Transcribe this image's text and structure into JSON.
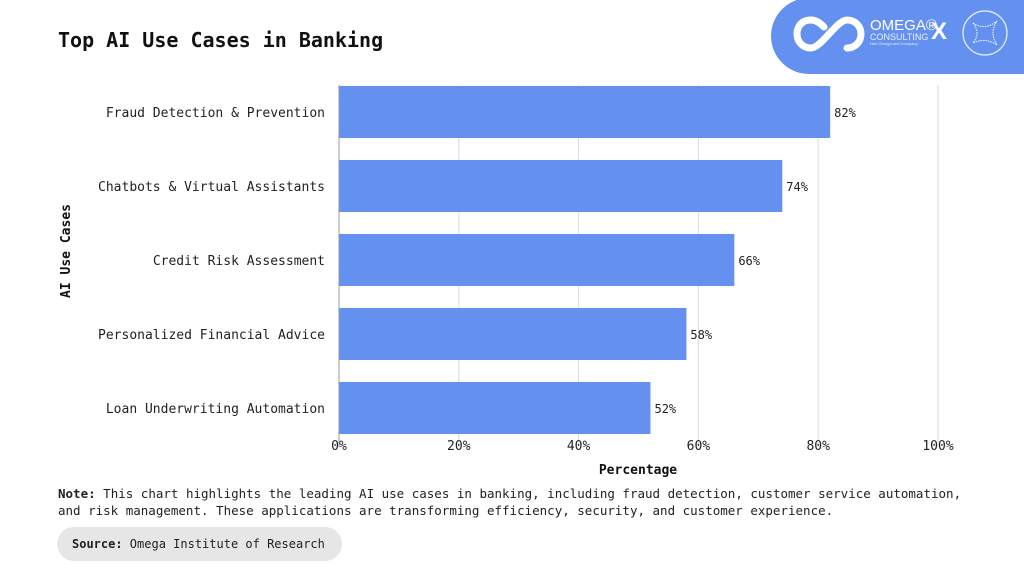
{
  "logo": {
    "brand": "OMEGA®",
    "sub": "CONSULTING",
    "tagline": "Han Omega and Company",
    "separator": "X"
  },
  "note": {
    "label": "Note:",
    "text": " This chart highlights the leading AI use cases in banking, including fraud detection, customer service automation, and risk management. These applications are transforming efficiency, security, and customer experience."
  },
  "source": {
    "label": "Source:",
    "text": " Omega Institute of Research"
  },
  "colors": {
    "bar": "#6491f0",
    "grid": "#dddddd"
  },
  "chart_data": {
    "type": "bar",
    "orientation": "horizontal",
    "title": "Top AI Use Cases in Banking",
    "xlabel": "Percentage",
    "ylabel": "AI Use Cases",
    "categories": [
      "Fraud Detection & Prevention",
      "Chatbots & Virtual Assistants",
      "Credit Risk Assessment",
      "Personalized Financial Advice",
      "Loan Underwriting Automation"
    ],
    "values": [
      82,
      74,
      66,
      58,
      52
    ],
    "data_labels": [
      "82%",
      "74%",
      "66%",
      "58%",
      "52%"
    ],
    "xlim": [
      0,
      100
    ],
    "xticks": [
      0,
      20,
      40,
      60,
      80,
      100
    ],
    "xtick_labels": [
      "0%",
      "20%",
      "40%",
      "60%",
      "80%",
      "100%"
    ],
    "grid": "vertical"
  }
}
